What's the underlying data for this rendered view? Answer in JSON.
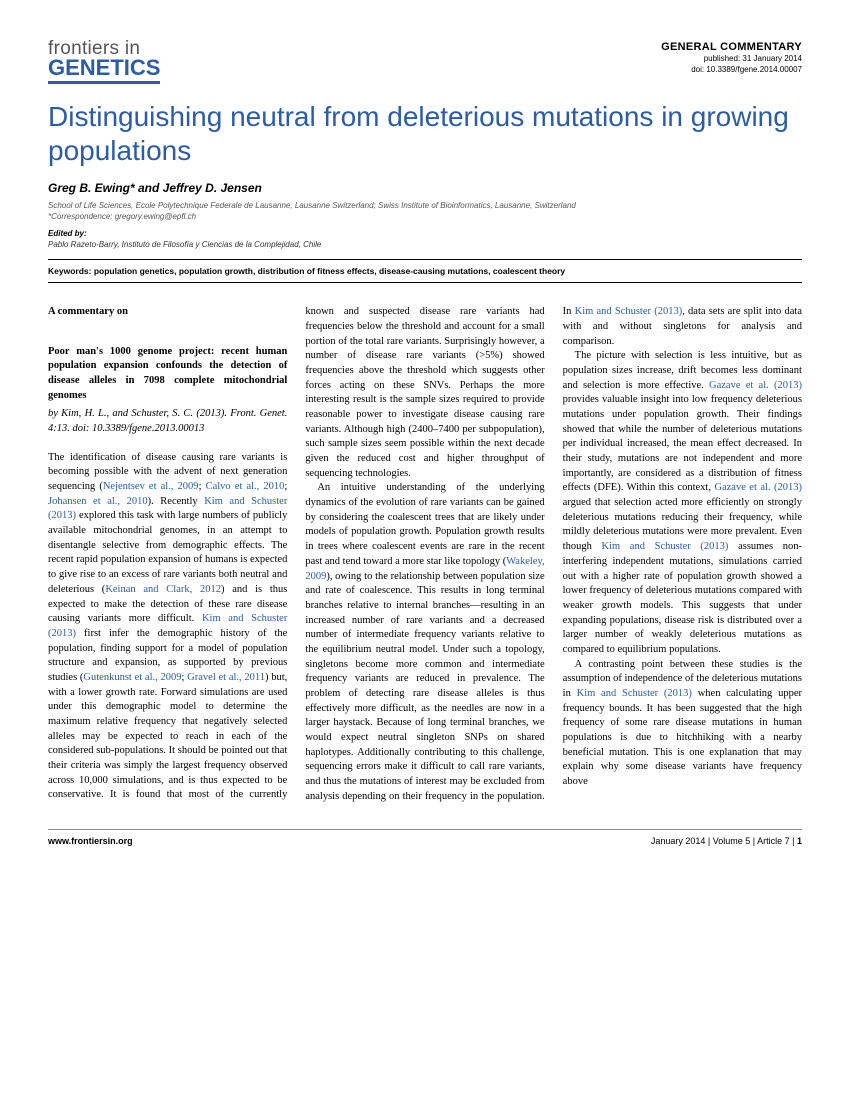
{
  "header": {
    "journal_top": "frontiers in",
    "journal_bottom": "GENETICS",
    "pub_type": "GENERAL COMMENTARY",
    "pub_date": "published: 31 January 2014",
    "doi": "doi: 10.3389/fgene.2014.00007"
  },
  "title": "Distinguishing neutral from deleterious mutations in growing populations",
  "authors": "Greg B. Ewing* and Jeffrey D. Jensen",
  "affiliation": "School of Life Sciences, Ecole Polytechnique Federale de Lausanne, Lausanne Switzerland; Swiss Institute of Bioinformatics, Lausanne, Switzerland",
  "correspondence": "*Correspondence: gregory.ewing@epfl.ch",
  "edited_label": "Edited by:",
  "edited_by": "Pablo Razeto-Barry, Instituto de Filosofía y Ciencias de la Complejidad, Chile",
  "keywords": "Keywords: population genetics, population growth, distribution of fitness effects, disease-causing mutations, coalescent theory",
  "commentary": {
    "label": "A commentary on",
    "title": "Poor man's 1000 genome project: recent human population expansion confounds the detection of disease alleles in 7098 complete mitochondrial genomes",
    "cite": "by Kim, H. L., and Schuster, S. C. (2013). Front. Genet. 4:13. doi: 10.3389/fgene.2013.00013"
  },
  "body": {
    "p1a": "The identification of disease causing rare variants is becoming possible with the advent of next generation sequencing (",
    "c1": "Nejentsev et al., 2009",
    "p1b": "; ",
    "c2": "Calvo et al., 2010",
    "p1c": "; ",
    "c3": "Johansen et al., 2010",
    "p1d": "). Recently ",
    "c4": "Kim and Schuster (2013)",
    "p1e": " explored this task with large numbers of publicly available mitochondrial genomes, in an attempt to disentangle selective from demographic effects. The recent rapid population expansion of humans is expected to give rise to an excess of rare variants both neutral and deleterious (",
    "c5": "Keinan and Clark, 2012",
    "p1f": ") and is thus expected to make the detection of these rare disease causing variants more difficult. ",
    "c6": "Kim and Schuster (2013)",
    "p1g": " first infer the demographic history of the population, finding support for a model of population structure and expansion, as supported by previous studies (",
    "c7": "Gutenkunst et al., 2009",
    "p1h": "; ",
    "c8": "Gravel et al., 2011",
    "p1i": ") but, with a lower growth rate. Forward simulations are used under this demographic model to determine the maximum relative frequency that negatively selected alleles may be expected to reach in each of the considered sub-populations. It should be pointed out that their criteria was simply the largest frequency observed across 10,000 simulations, and is thus expected to be conservative. It is found that most of the currently known and suspected disease rare variants had frequencies below the threshold and account for a small portion of the total rare variants. Surprisingly however, a number of disease rare variants (>5%) showed frequencies above the threshold which suggests other forces acting on these SNVs. Perhaps the more interesting result is the sample sizes required to provide reasonable power to investigate disease causing rare variants. Although high (2400–7400 per subpopulation), such sample sizes seem possible within the next decade given the reduced cost and higher throughput of sequencing technologies.",
    "p2a": "An intuitive understanding of the underlying dynamics of the evolution of rare variants can be gained by considering the coalescent trees that are likely under models of population growth. Population growth results in trees where coalescent events are rare in the recent past and tend toward a more star like topology (",
    "c9": "Wakeley, 2009",
    "p2b": "), owing to the relationship between population size and rate of coalescence. This results in long terminal branches relative to internal branches—resulting in an increased number of rare variants and a decreased number of intermediate frequency variants relative to the equilibrium neutral model. Under such a topology, singletons become more common and intermediate frequency variants are reduced in prevalence. The problem of detecting rare disease alleles is thus effectively more difficult, as the needles are now in a larger haystack. Because of long terminal branches, we would expect neutral singleton SNPs on shared haplotypes. Additionally contributing to this challenge, sequencing errors make it difficult to call rare variants, and thus the mutations of interest may be excluded from analysis depending on their frequency in the population. In ",
    "c10": "Kim and Schuster (2013)",
    "p2c": ", data sets are split into data with and without singletons for analysis and comparison.",
    "p3a": "The picture with selection is less intuitive, but as population sizes increase, drift becomes less dominant and selection is more effective. ",
    "c11": "Gazave et al. (2013)",
    "p3b": " provides valuable insight into low frequency deleterious mutations under population growth. Their findings showed that while the number of deleterious mutations per individual increased, the mean effect decreased. In their study, mutations are not independent and more importantly, are considered as a distribution of fitness effects (DFE). Within this context, ",
    "c12": "Gazave et al. (2013)",
    "p3c": " argued that selection acted more efficiently on strongly deleterious mutations reducing their frequency, while mildly deleterious mutations were more prevalent. Even though ",
    "c13": "Kim and Schuster (2013)",
    "p3d": " assumes non-interfering independent mutations, simulations carried out with a higher rate of population growth showed a lower frequency of deleterious mutations compared with weaker growth models. This suggests that under expanding populations, disease risk is distributed over a larger number of weakly deleterious mutations as compared to equilibrium populations.",
    "p4a": "A contrasting point between these studies is the assumption of independence of the deleterious mutations in ",
    "c14": "Kim and Schuster (2013)",
    "p4b": " when calculating upper frequency bounds. It has been suggested that the high frequency of some rare disease mutations in human populations is due to hitchhiking with a nearby beneficial mutation. This is one explanation that may explain why some disease variants have frequency above"
  },
  "footer": {
    "url": "www.frontiersin.org",
    "issue": "January 2014 | Volume 5 | Article 7 | ",
    "page": "1"
  }
}
